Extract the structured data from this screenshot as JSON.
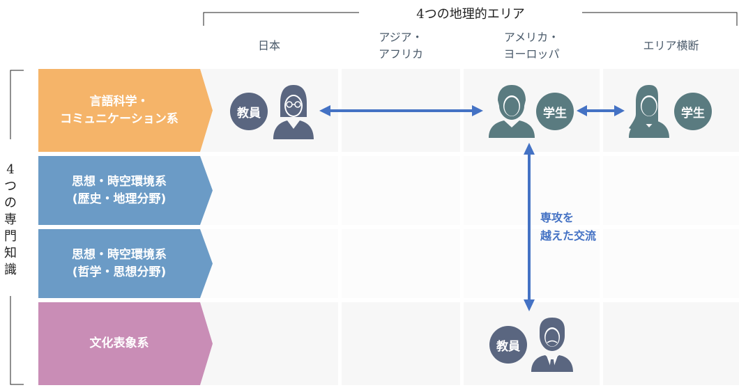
{
  "areas_title": "4つの地理的エリア",
  "fields_title": "4つの専門知識",
  "columns": [
    "日本",
    "アジア・\nアフリカ",
    "アメリカ・\nヨーロッパ",
    "エリア横断"
  ],
  "rows": [
    {
      "label": "言語科学・\nコミュニケーション系",
      "color": "#f5b469"
    },
    {
      "label": "思想・時空環境系\n(歴史・地理分野)",
      "color": "#6b9bc6"
    },
    {
      "label": "思想・時空環境系\n(哲学・思想分野)",
      "color": "#6b9bc6"
    },
    {
      "label": "文化表象系",
      "color": "#c98db6"
    }
  ],
  "people": {
    "teacher_japan": {
      "badge": "教員",
      "icon": "female-teacher-icon"
    },
    "student_americas": {
      "badge": "学生",
      "icon": "student-icon"
    },
    "student_cross": {
      "badge": "学生",
      "icon": "female-student-icon"
    },
    "teacher_culture": {
      "badge": "教員",
      "icon": "male-teacher-icon"
    }
  },
  "exchange_label": "専攻を\n越えた交流",
  "colors": {
    "teacher": "#5a6680",
    "student": "#5a7b80",
    "arrow": "#4472c4"
  }
}
